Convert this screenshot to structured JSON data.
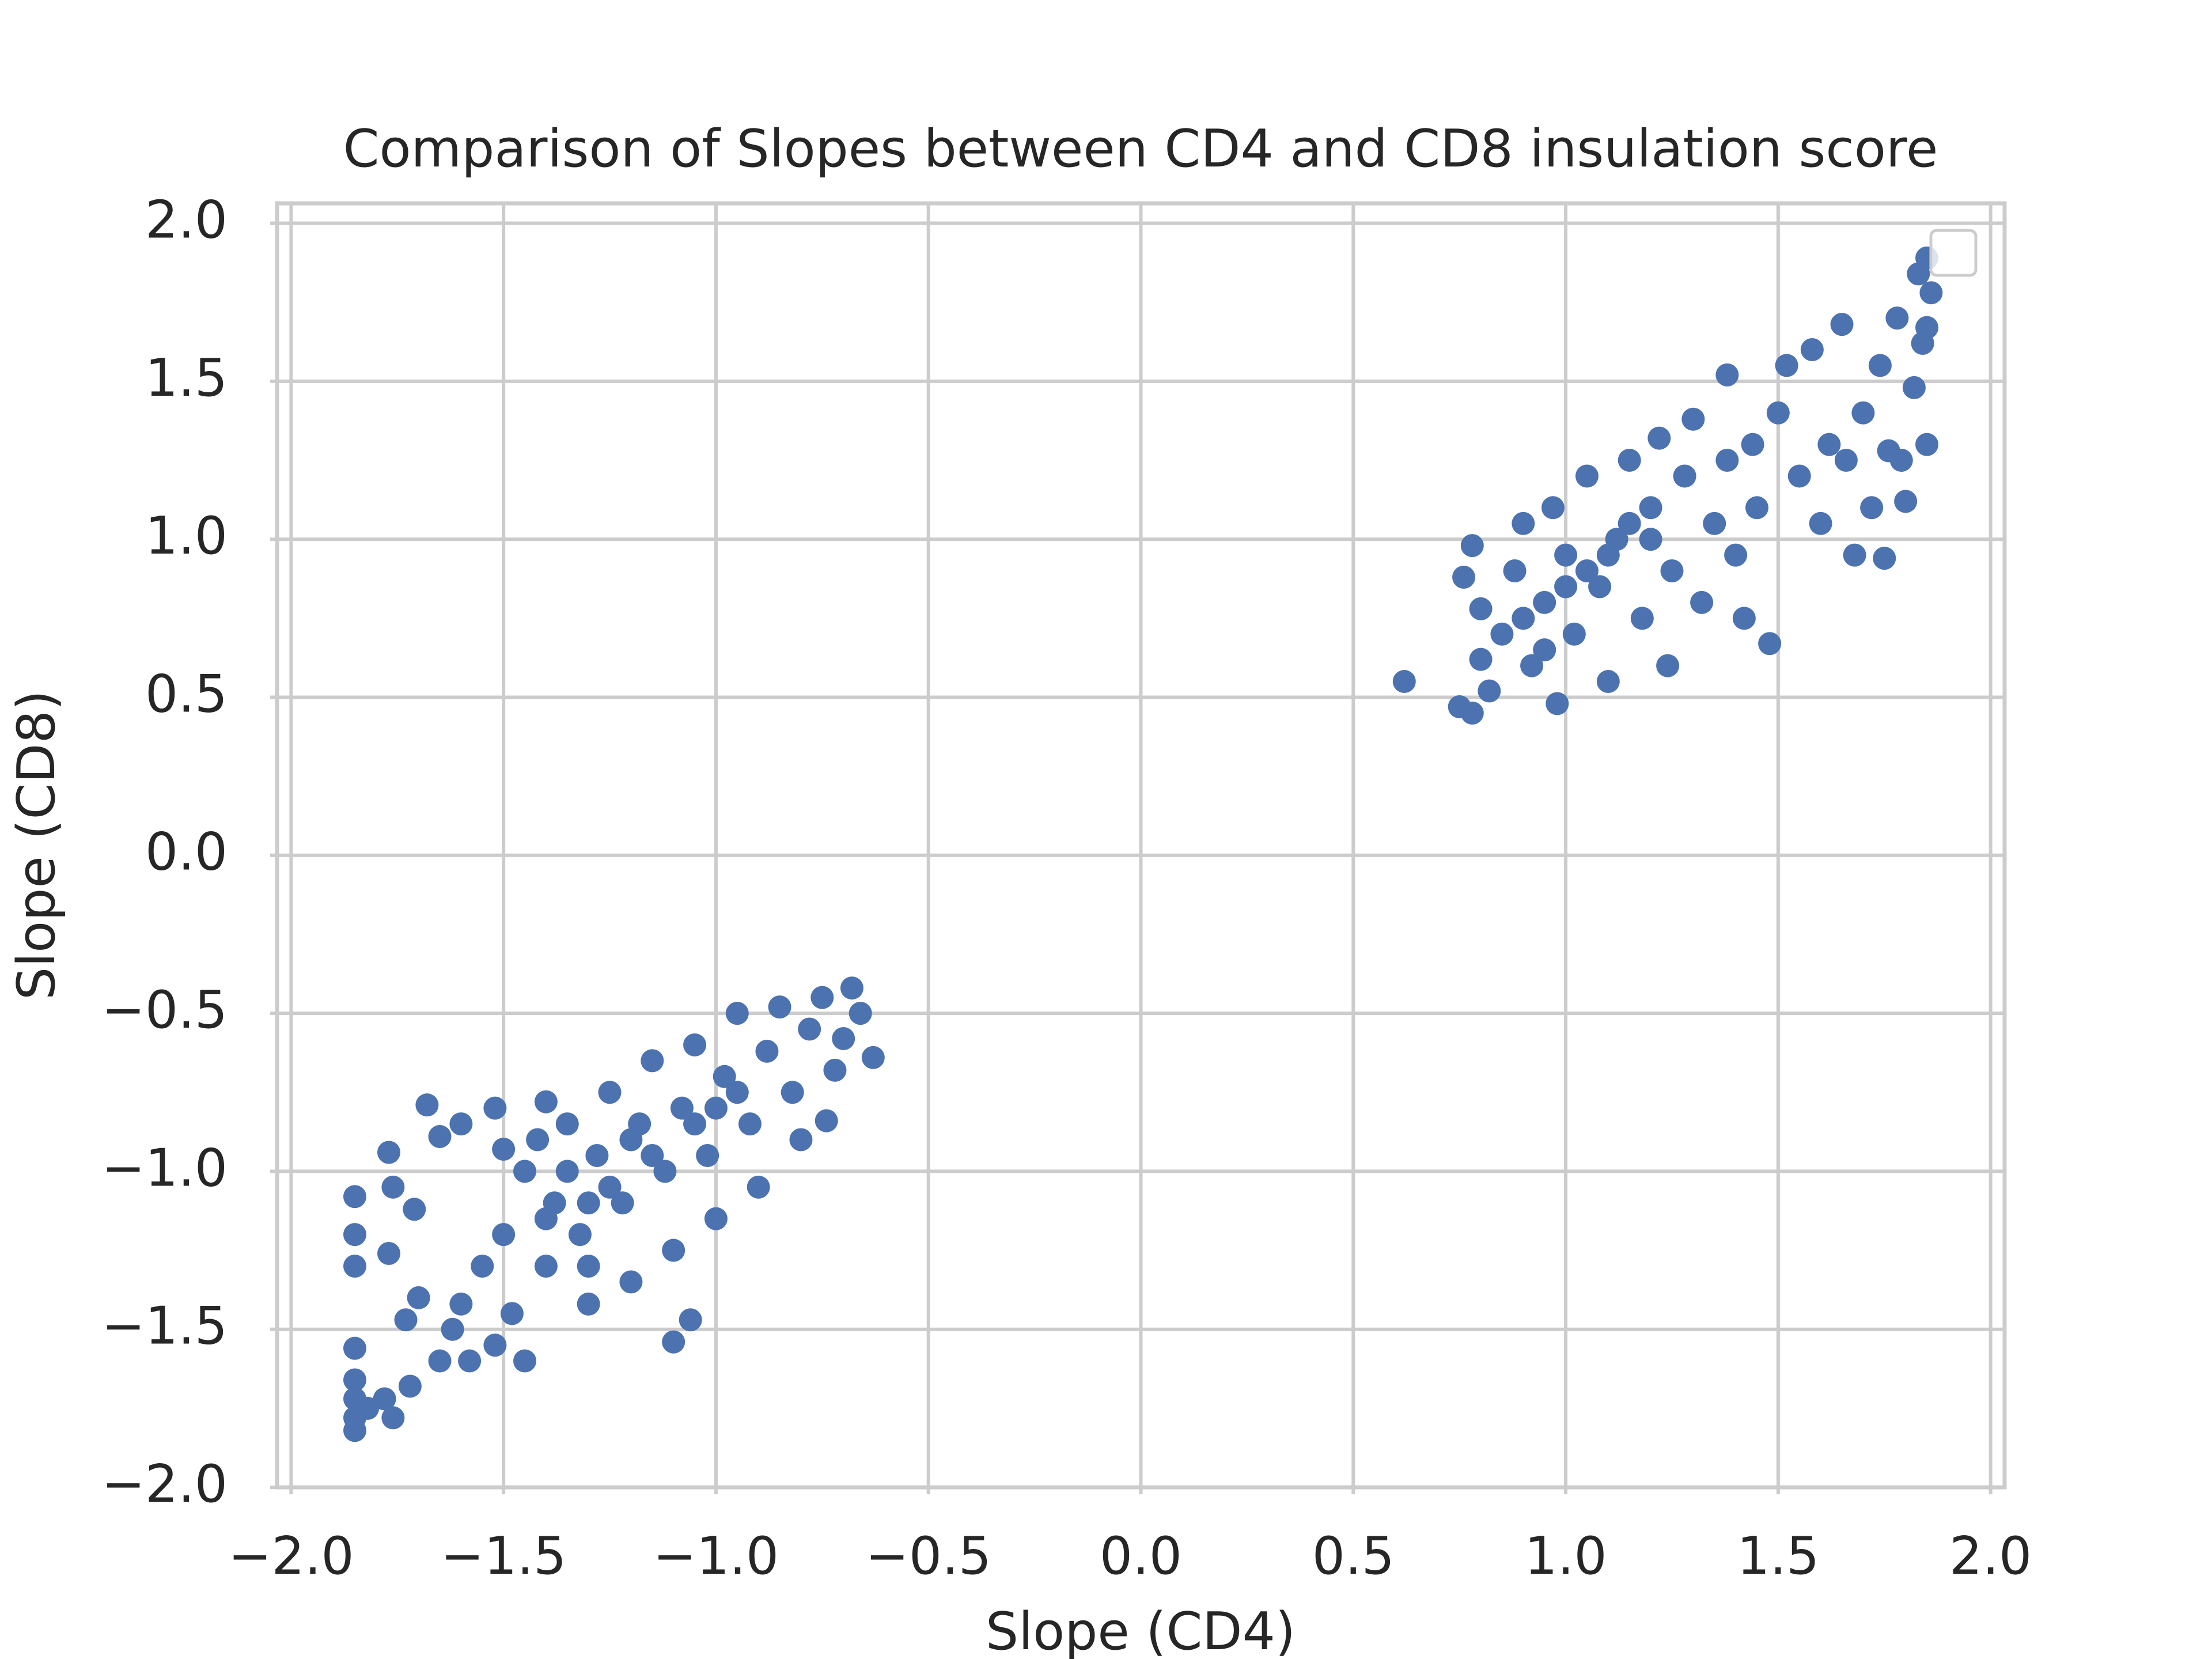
{
  "chart_data": {
    "type": "scatter",
    "title": "Comparison of Slopes between CD4 and CD8 insulation score",
    "x_label": "Slope (CD4)",
    "y_label": "Slope (CD8)",
    "x": [
      -1.85,
      -1.85,
      -1.85,
      -1.85,
      -1.85,
      -1.85,
      -1.85,
      -1.85,
      -1.82,
      -1.78,
      -1.76,
      -1.72,
      -1.77,
      -1.73,
      -1.7,
      -1.76,
      -1.71,
      -1.77,
      -1.68,
      -1.65,
      -1.6,
      -1.52,
      -1.65,
      -1.62,
      -1.6,
      -1.58,
      -1.55,
      -1.52,
      -1.5,
      -1.48,
      -1.45,
      -1.45,
      -1.42,
      -1.4,
      -1.38,
      -1.35,
      -1.32,
      -1.3,
      -1.28,
      -1.25,
      -1.22,
      -1.2,
      -1.18,
      -1.15,
      -1.12,
      -1.1,
      -1.08,
      -1.05,
      -1.02,
      -1.0,
      -0.98,
      -0.95,
      -0.92,
      -0.9,
      -0.88,
      -0.85,
      -0.82,
      -0.8,
      -0.78,
      -0.75,
      -0.72,
      -0.7,
      -0.68,
      -0.66,
      -0.63,
      -0.74,
      -1.1,
      -1.06,
      -1.3,
      -1.4,
      -1.5,
      -1.35,
      -1.25,
      -1.15,
      -1.05,
      -0.95,
      -1.2,
      -1.0,
      -1.3,
      -1.4,
      0.62,
      0.75,
      0.78,
      0.8,
      0.82,
      0.76,
      0.78,
      0.8,
      0.85,
      0.88,
      0.9,
      0.92,
      0.95,
      0.97,
      0.98,
      1.0,
      1.02,
      1.05,
      1.08,
      1.1,
      1.12,
      1.15,
      1.18,
      1.2,
      1.22,
      1.24,
      1.25,
      1.28,
      1.3,
      1.32,
      1.35,
      1.38,
      1.38,
      1.4,
      1.42,
      1.44,
      1.45,
      1.48,
      1.5,
      1.52,
      1.55,
      1.58,
      1.6,
      1.62,
      1.65,
      1.66,
      1.68,
      1.7,
      1.72,
      1.74,
      1.75,
      1.76,
      1.78,
      1.79,
      1.8,
      1.82,
      1.83,
      1.84,
      1.85,
      1.85,
      1.85,
      1.86,
      1.0,
      1.1,
      0.9,
      1.2,
      1.05,
      0.95,
      1.15
    ],
    "series": [
      {
        "color": "#4c72b0",
        "values": [
          -1.08,
          -1.2,
          -1.3,
          -1.56,
          -1.66,
          -1.72,
          -1.78,
          -1.82,
          -1.75,
          -1.72,
          -1.78,
          -1.68,
          -1.26,
          -1.47,
          -1.4,
          -1.05,
          -1.12,
          -0.94,
          -0.79,
          -0.89,
          -0.85,
          -0.8,
          -1.6,
          -1.5,
          -1.42,
          -1.6,
          -1.3,
          -1.55,
          -1.2,
          -1.45,
          -1.6,
          -1.0,
          -0.9,
          -1.3,
          -1.1,
          -0.85,
          -1.2,
          -1.42,
          -0.95,
          -0.75,
          -1.1,
          -1.35,
          -0.85,
          -0.65,
          -1.0,
          -1.25,
          -0.8,
          -0.6,
          -0.95,
          -1.15,
          -0.7,
          -0.5,
          -0.85,
          -1.05,
          -0.62,
          -0.48,
          -0.75,
          -0.9,
          -0.55,
          -0.45,
          -0.68,
          -0.58,
          -0.42,
          -0.5,
          -0.64,
          -0.84,
          -1.54,
          -1.47,
          -1.3,
          -0.78,
          -0.93,
          -1.0,
          -1.05,
          -0.95,
          -0.85,
          -0.75,
          -0.9,
          -0.8,
          -1.1,
          -1.15,
          0.55,
          0.47,
          0.45,
          0.62,
          0.52,
          0.88,
          0.98,
          0.78,
          0.7,
          0.9,
          1.05,
          0.6,
          0.8,
          1.1,
          0.48,
          0.95,
          0.7,
          1.2,
          0.85,
          0.55,
          1.0,
          1.25,
          0.75,
          1.1,
          1.32,
          0.6,
          0.9,
          1.2,
          1.38,
          0.8,
          1.05,
          1.25,
          1.52,
          0.95,
          0.75,
          1.3,
          1.1,
          0.67,
          1.4,
          1.55,
          1.2,
          1.6,
          1.05,
          1.3,
          1.68,
          1.25,
          0.95,
          1.4,
          1.1,
          1.55,
          0.94,
          1.28,
          1.7,
          1.25,
          1.12,
          1.48,
          1.84,
          1.62,
          1.89,
          1.3,
          1.67,
          1.78,
          0.85,
          0.95,
          0.75,
          1.0,
          0.9,
          0.65,
          1.05
        ]
      }
    ],
    "xlim": [
      -2.033,
      2.033
    ],
    "ylim": [
      -2.0,
      2.063
    ],
    "xticks": [
      {
        "value": -2,
        "label": "−2.0"
      },
      {
        "value": -1.5,
        "label": "−1.5"
      },
      {
        "value": -1,
        "label": "−1.0"
      },
      {
        "value": -0.5,
        "label": "−0.5"
      },
      {
        "value": 0,
        "label": "0.0"
      },
      0.5,
      {
        "value": 1,
        "label": "1.0"
      },
      1.5,
      {
        "value": 2,
        "label": "2.0"
      }
    ],
    "yticks": [
      {
        "value": -2,
        "label": "−2.0"
      },
      {
        "value": -1.5,
        "label": "−1.5"
      },
      {
        "value": -1,
        "label": "−1.0"
      },
      {
        "value": -0.5,
        "label": "−0.5"
      },
      {
        "value": 0,
        "label": "0.0"
      },
      0.5,
      {
        "value": 1,
        "label": "1.0"
      },
      1.5,
      {
        "value": 2,
        "label": "2.0"
      }
    ],
    "grid": true,
    "legend": "upper right"
  }
}
